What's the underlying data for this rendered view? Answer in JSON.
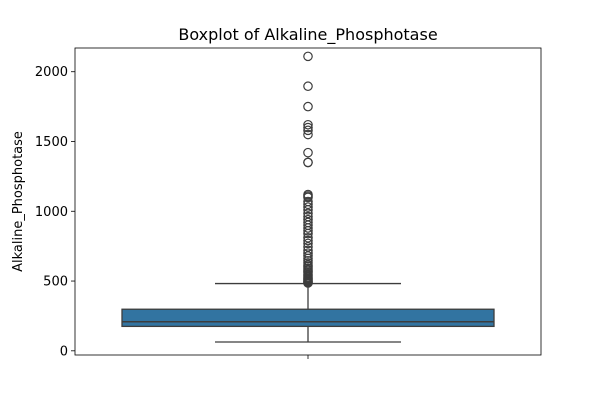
{
  "chart_data": {
    "type": "box",
    "title": "Boxplot of Alkaline_Phosphotase",
    "xlabel": "",
    "ylabel": "Alkaline_Phosphotase",
    "ylim": [
      -30,
      2170
    ],
    "yticks": [
      0,
      500,
      1000,
      1500,
      2000
    ],
    "grid": false,
    "colors": {
      "box_fill": "#3274a1",
      "box_edge": "#3d3d3d",
      "outlier_edge": "#3d3d3d"
    },
    "series": [
      {
        "whisker_low": 63,
        "q1": 175,
        "median": 208,
        "q3": 298,
        "whisker_high": 482,
        "outliers": [
          486,
          490,
          495,
          500,
          508,
          515,
          522,
          530,
          540,
          548,
          560,
          570,
          580,
          592,
          605,
          615,
          630,
          645,
          662,
          680,
          700,
          720,
          745,
          770,
          790,
          810,
          840,
          860,
          880,
          900,
          920,
          940,
          962,
          985,
          1010,
          1030,
          1050,
          1070,
          1100,
          1110,
          1120,
          1350,
          1350,
          1420,
          1550,
          1580,
          1600,
          1620,
          1750,
          1896,
          2110
        ]
      }
    ]
  }
}
